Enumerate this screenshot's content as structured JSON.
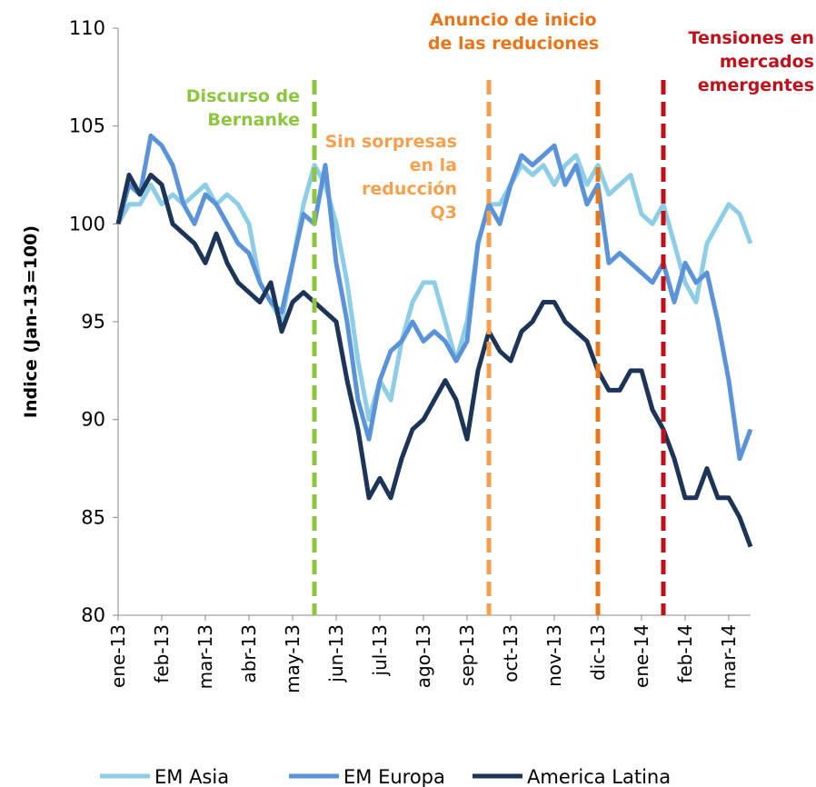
{
  "chart_data": {
    "type": "line",
    "y_label": "Indice (Jan-13=100)",
    "categories": [
      "ene-13",
      null,
      null,
      null,
      "feb-13",
      null,
      null,
      null,
      "mar-13",
      null,
      null,
      null,
      "abr-13",
      null,
      null,
      null,
      "may-13",
      null,
      null,
      null,
      "jun-13",
      null,
      null,
      null,
      "jul-13",
      null,
      null,
      null,
      "ago-13",
      null,
      null,
      null,
      "sep-13",
      null,
      null,
      null,
      "oct-13",
      null,
      null,
      null,
      "nov-13",
      null,
      null,
      null,
      "dic-13",
      null,
      null,
      null,
      "ene-14",
      null,
      null,
      null,
      "feb-14",
      null,
      null,
      null,
      "mar-14",
      null,
      null
    ],
    "series": [
      {
        "name": "EM Asia",
        "color": "#8ecde6",
        "values": [
          100,
          101,
          101,
          102,
          101,
          101.5,
          101,
          101.5,
          102,
          101,
          101.5,
          101,
          100,
          97,
          96,
          95,
          98,
          101,
          103,
          102,
          100,
          97,
          93,
          90,
          92,
          91,
          94,
          96,
          97,
          97,
          95,
          93,
          95,
          99,
          101,
          101,
          102,
          103,
          102.5,
          103,
          102,
          103,
          103.5,
          102,
          103,
          101.5,
          102,
          102.5,
          100.5,
          100,
          101,
          99,
          97,
          96,
          99,
          100,
          101,
          100.5,
          99
        ]
      },
      {
        "name": "EM Europa",
        "color": "#5a93d8",
        "values": [
          100,
          102,
          101.5,
          104.5,
          104,
          103,
          101,
          100,
          101.5,
          101,
          100,
          99,
          98.5,
          97,
          96,
          95.5,
          98,
          100.5,
          100,
          103,
          98,
          95,
          91,
          89,
          92,
          93.5,
          94,
          95,
          94,
          94.5,
          94,
          93,
          94,
          99,
          101,
          100,
          102,
          103.5,
          103,
          103.5,
          104,
          102,
          103,
          101,
          102,
          98,
          98.5,
          98,
          97.5,
          97,
          98,
          96,
          98,
          97,
          97.5,
          95,
          92,
          88,
          89.5
        ]
      },
      {
        "name": "America Latina",
        "color": "#1c3457",
        "values": [
          100,
          102.5,
          101.5,
          102.5,
          102,
          100,
          99.5,
          99,
          98,
          99.5,
          98,
          97,
          96.5,
          96,
          97,
          94.5,
          96,
          96.5,
          96,
          95.5,
          95,
          92,
          89.5,
          86,
          87,
          86,
          88,
          89.5,
          90,
          91,
          92,
          91,
          89,
          92.5,
          94.5,
          93.5,
          93,
          94.5,
          95,
          96,
          96,
          95,
          94.5,
          94,
          92.5,
          91.5,
          91.5,
          92.5,
          92.5,
          90.5,
          89.5,
          88,
          86,
          86,
          87.5,
          86,
          86,
          85,
          83.5
        ]
      }
    ],
    "annotations": [
      {
        "text": [
          "Discurso de",
          "Bernanke"
        ],
        "color": "#8cc63f",
        "at": 18
      },
      {
        "text": [
          "Sin sorpresas",
          "en la",
          "reducción",
          "Q3"
        ],
        "color": "#f6a04d",
        "at": 34
      },
      {
        "text": [
          "Anuncio de inicio",
          "de las reduciones"
        ],
        "color": "#e8751a",
        "at": 44
      },
      {
        "text": [
          "Tensiones en",
          "mercados",
          "emergentes"
        ],
        "color": "#c0101a",
        "at": 50
      }
    ],
    "ylim": [
      80,
      110
    ],
    "yticks": [
      80,
      85,
      90,
      95,
      100,
      105,
      110
    ],
    "legend": "bottom"
  }
}
